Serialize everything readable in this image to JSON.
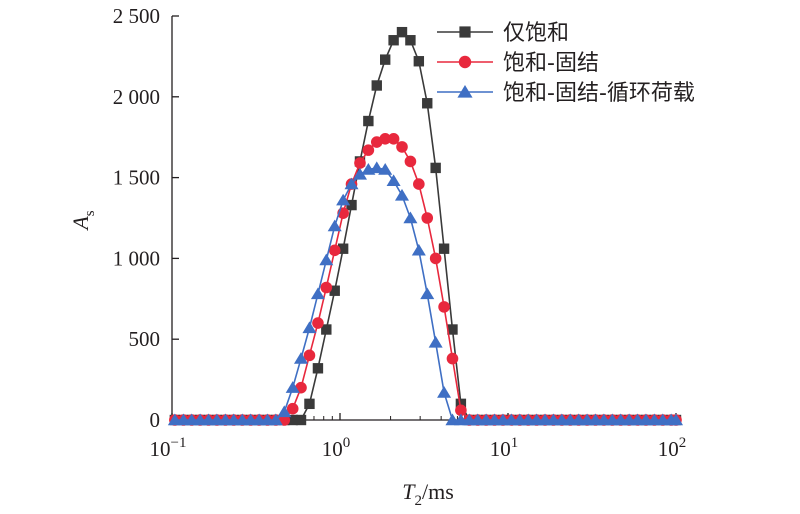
{
  "chart_data": {
    "type": "line",
    "xscale": "log",
    "xlim": [
      0.1,
      100
    ],
    "ylim": [
      0,
      2500
    ],
    "xlabel": {
      "main": "T",
      "sub": "2",
      "unit": "/ms"
    },
    "ylabel": {
      "main": "A",
      "sub": "s"
    },
    "xticks": [
      {
        "value": 0.1,
        "base": "10",
        "exp": "−1"
      },
      {
        "value": 1,
        "base": "10",
        "exp": "0"
      },
      {
        "value": 10,
        "base": "10",
        "exp": "1"
      },
      {
        "value": 100,
        "base": "10",
        "exp": "2"
      }
    ],
    "yticks": [
      {
        "value": 0,
        "label": "0"
      },
      {
        "value": 500,
        "label": "500"
      },
      {
        "value": 1000,
        "label": "1 000"
      },
      {
        "value": 1500,
        "label": "1 500"
      },
      {
        "value": 2000,
        "label": "2 000"
      },
      {
        "value": 2500,
        "label": "2 500"
      }
    ],
    "legend_position": "top-right",
    "series": [
      {
        "name": "仅饱和",
        "color": "#3a3a3a",
        "marker": "square",
        "peak": {
          "x": 2.36,
          "y": 2400
        },
        "points": [
          [
            0.104,
            0
          ],
          [
            0.117,
            0
          ],
          [
            0.131,
            0
          ],
          [
            0.147,
            0
          ],
          [
            0.165,
            0
          ],
          [
            0.185,
            0
          ],
          [
            0.208,
            0
          ],
          [
            0.233,
            0
          ],
          [
            0.262,
            0
          ],
          [
            0.294,
            0
          ],
          [
            0.33,
            0
          ],
          [
            0.37,
            0
          ],
          [
            0.415,
            0
          ],
          [
            0.466,
            0
          ],
          [
            0.523,
            0
          ],
          [
            0.586,
            0
          ],
          [
            0.658,
            100
          ],
          [
            0.739,
            320
          ],
          [
            0.829,
            560
          ],
          [
            0.93,
            800
          ],
          [
            1.044,
            1060
          ],
          [
            1.171,
            1330
          ],
          [
            1.315,
            1600
          ],
          [
            1.475,
            1850
          ],
          [
            1.655,
            2070
          ],
          [
            1.858,
            2230
          ],
          [
            2.085,
            2350
          ],
          [
            2.339,
            2400
          ],
          [
            2.625,
            2350
          ],
          [
            2.946,
            2220
          ],
          [
            3.306,
            1960
          ],
          [
            3.71,
            1560
          ],
          [
            4.164,
            1060
          ],
          [
            4.672,
            560
          ],
          [
            5.243,
            100
          ],
          [
            5.884,
            0
          ],
          [
            6.603,
            0
          ],
          [
            7.41,
            0
          ],
          [
            8.315,
            0
          ],
          [
            9.331,
            0
          ],
          [
            10.47,
            0
          ],
          [
            11.75,
            0
          ],
          [
            13.19,
            0
          ],
          [
            14.8,
            0
          ],
          [
            16.61,
            0
          ],
          [
            18.64,
            0
          ],
          [
            20.92,
            0
          ],
          [
            23.47,
            0
          ],
          [
            26.34,
            0
          ],
          [
            29.56,
            0
          ],
          [
            33.17,
            0
          ],
          [
            37.22,
            0
          ],
          [
            41.77,
            0
          ],
          [
            46.88,
            0
          ],
          [
            52.6,
            0
          ],
          [
            59.03,
            0
          ],
          [
            66.24,
            0
          ],
          [
            74.34,
            0
          ],
          [
            83.42,
            0
          ],
          [
            93.61,
            0
          ],
          [
            100,
            0
          ]
        ]
      },
      {
        "name": "饱和-固结",
        "color": "#e8283d",
        "marker": "circle",
        "peak": {
          "x": 1.9,
          "y": 1740
        },
        "points": [
          [
            0.104,
            0
          ],
          [
            0.117,
            0
          ],
          [
            0.131,
            0
          ],
          [
            0.147,
            0
          ],
          [
            0.165,
            0
          ],
          [
            0.185,
            0
          ],
          [
            0.208,
            0
          ],
          [
            0.233,
            0
          ],
          [
            0.262,
            0
          ],
          [
            0.294,
            0
          ],
          [
            0.33,
            0
          ],
          [
            0.37,
            0
          ],
          [
            0.415,
            0
          ],
          [
            0.466,
            0
          ],
          [
            0.523,
            70
          ],
          [
            0.586,
            200
          ],
          [
            0.658,
            400
          ],
          [
            0.739,
            600
          ],
          [
            0.829,
            820
          ],
          [
            0.93,
            1050
          ],
          [
            1.044,
            1280
          ],
          [
            1.171,
            1460
          ],
          [
            1.315,
            1590
          ],
          [
            1.475,
            1670
          ],
          [
            1.655,
            1720
          ],
          [
            1.858,
            1740
          ],
          [
            2.085,
            1740
          ],
          [
            2.339,
            1690
          ],
          [
            2.625,
            1600
          ],
          [
            2.946,
            1460
          ],
          [
            3.306,
            1250
          ],
          [
            3.71,
            1000
          ],
          [
            4.164,
            700
          ],
          [
            4.672,
            380
          ],
          [
            5.243,
            60
          ],
          [
            5.884,
            0
          ],
          [
            6.603,
            0
          ],
          [
            7.41,
            0
          ],
          [
            8.315,
            0
          ],
          [
            9.331,
            0
          ],
          [
            10.47,
            0
          ],
          [
            11.75,
            0
          ],
          [
            13.19,
            0
          ],
          [
            14.8,
            0
          ],
          [
            16.61,
            0
          ],
          [
            18.64,
            0
          ],
          [
            20.92,
            0
          ],
          [
            23.47,
            0
          ],
          [
            26.34,
            0
          ],
          [
            29.56,
            0
          ],
          [
            33.17,
            0
          ],
          [
            37.22,
            0
          ],
          [
            41.77,
            0
          ],
          [
            46.88,
            0
          ],
          [
            52.6,
            0
          ],
          [
            59.03,
            0
          ],
          [
            66.24,
            0
          ],
          [
            74.34,
            0
          ],
          [
            83.42,
            0
          ],
          [
            93.61,
            0
          ],
          [
            100,
            0
          ]
        ]
      },
      {
        "name": "饱和-固结-循环荷载",
        "color": "#3f6fc4",
        "marker": "triangle",
        "peak": {
          "x": 1.7,
          "y": 1560
        },
        "points": [
          [
            0.104,
            0
          ],
          [
            0.117,
            0
          ],
          [
            0.131,
            0
          ],
          [
            0.147,
            0
          ],
          [
            0.165,
            0
          ],
          [
            0.185,
            0
          ],
          [
            0.208,
            0
          ],
          [
            0.233,
            0
          ],
          [
            0.262,
            0
          ],
          [
            0.294,
            0
          ],
          [
            0.33,
            0
          ],
          [
            0.37,
            0
          ],
          [
            0.415,
            0
          ],
          [
            0.466,
            50
          ],
          [
            0.523,
            200
          ],
          [
            0.586,
            380
          ],
          [
            0.658,
            570
          ],
          [
            0.739,
            780
          ],
          [
            0.829,
            990
          ],
          [
            0.93,
            1200
          ],
          [
            1.044,
            1360
          ],
          [
            1.171,
            1460
          ],
          [
            1.315,
            1520
          ],
          [
            1.475,
            1550
          ],
          [
            1.655,
            1560
          ],
          [
            1.858,
            1550
          ],
          [
            2.085,
            1480
          ],
          [
            2.339,
            1390
          ],
          [
            2.625,
            1250
          ],
          [
            2.946,
            1050
          ],
          [
            3.306,
            780
          ],
          [
            3.71,
            480
          ],
          [
            4.164,
            170
          ],
          [
            4.672,
            0
          ],
          [
            5.243,
            0
          ],
          [
            5.884,
            0
          ],
          [
            6.603,
            0
          ],
          [
            7.41,
            0
          ],
          [
            8.315,
            0
          ],
          [
            9.331,
            0
          ],
          [
            10.47,
            0
          ],
          [
            11.75,
            0
          ],
          [
            13.19,
            0
          ],
          [
            14.8,
            0
          ],
          [
            16.61,
            0
          ],
          [
            18.64,
            0
          ],
          [
            20.92,
            0
          ],
          [
            23.47,
            0
          ],
          [
            26.34,
            0
          ],
          [
            29.56,
            0
          ],
          [
            33.17,
            0
          ],
          [
            37.22,
            0
          ],
          [
            41.77,
            0
          ],
          [
            46.88,
            0
          ],
          [
            52.6,
            0
          ],
          [
            59.03,
            0
          ],
          [
            66.24,
            0
          ],
          [
            74.34,
            0
          ],
          [
            83.42,
            0
          ],
          [
            93.61,
            0
          ],
          [
            100,
            0
          ]
        ]
      }
    ]
  }
}
